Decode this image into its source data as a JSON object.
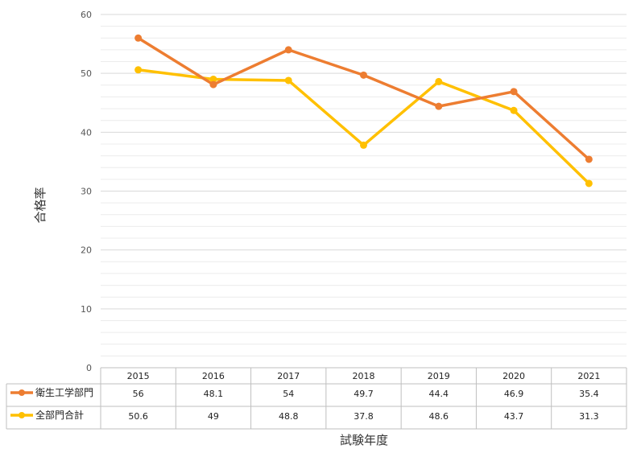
{
  "chart_data": {
    "type": "line",
    "categories": [
      "2015",
      "2016",
      "2017",
      "2018",
      "2019",
      "2020",
      "2021"
    ],
    "series": [
      {
        "name": "衛生工学部門",
        "color": "#ED7D31",
        "values": [
          56,
          48.1,
          54,
          49.7,
          44.4,
          46.9,
          35.4
        ],
        "labels": [
          "56",
          "48.1",
          "54",
          "49.7",
          "44.4",
          "46.9",
          "35.4"
        ]
      },
      {
        "name": "全部門合計",
        "color": "#FFC000",
        "values": [
          50.6,
          49,
          48.8,
          37.8,
          48.6,
          43.7,
          31.3
        ],
        "labels": [
          "50.6",
          "49",
          "48.8",
          "37.8",
          "48.6",
          "43.7",
          "31.3"
        ]
      }
    ],
    "ylabel": "合格率",
    "xlabel": "試験年度",
    "ylim": [
      0,
      60
    ],
    "yticks": [
      0,
      10,
      20,
      30,
      40,
      50,
      60
    ],
    "minor_step": 2,
    "grid": true,
    "legend": "data-table"
  }
}
